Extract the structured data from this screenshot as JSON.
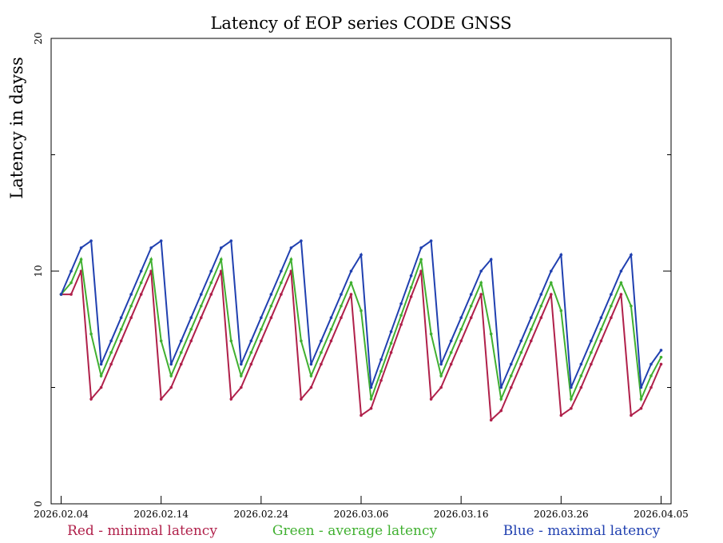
{
  "chart_data": {
    "type": "line",
    "title": "Latency of EOP  series CODE GNSS",
    "y_label": "Latency in dayss",
    "x": [
      "2026.02.04",
      "2026.02.05",
      "2026.02.06",
      "2026.02.07",
      "2026.02.08",
      "2026.02.09",
      "2026.02.10",
      "2026.02.11",
      "2026.02.12",
      "2026.02.13",
      "2026.02.14",
      "2026.02.15",
      "2026.02.16",
      "2026.02.17",
      "2026.02.18",
      "2026.02.19",
      "2026.02.20",
      "2026.02.21",
      "2026.02.22",
      "2026.02.23",
      "2026.02.24",
      "2026.02.25",
      "2026.02.26",
      "2026.02.27",
      "2026.02.28",
      "2026.03.01",
      "2026.03.02",
      "2026.03.03",
      "2026.03.04",
      "2026.03.05",
      "2026.03.06",
      "2026.03.07",
      "2026.03.08",
      "2026.03.09",
      "2026.03.10",
      "2026.03.11",
      "2026.03.12",
      "2026.03.13",
      "2026.03.14",
      "2026.03.15",
      "2026.03.16",
      "2026.03.17",
      "2026.03.18",
      "2026.03.19",
      "2026.03.20",
      "2026.03.21",
      "2026.03.22",
      "2026.03.23",
      "2026.03.24",
      "2026.03.25",
      "2026.03.26",
      "2026.03.27",
      "2026.03.28",
      "2026.03.29",
      "2026.03.30",
      "2026.03.31",
      "2026.04.01",
      "2026.04.02",
      "2026.04.03",
      "2026.04.04",
      "2026.04.05"
    ],
    "series": [
      {
        "name": "Red - minimal latency",
        "color": "#b0204a",
        "values": [
          9,
          9,
          10,
          4.5,
          5,
          6,
          7,
          8,
          9,
          10,
          4.5,
          5,
          6,
          7,
          8,
          9,
          10,
          4.5,
          5,
          6,
          7,
          8,
          9,
          10,
          4.5,
          5,
          6,
          7,
          8,
          9,
          3.8,
          4.1,
          5.3,
          6.5,
          7.7,
          8.9,
          10,
          4.5,
          5,
          6,
          7,
          8,
          9,
          3.6,
          4,
          5,
          6,
          7,
          8,
          9,
          3.8,
          4.1,
          5,
          6,
          7,
          8,
          9,
          3.8,
          4.1,
          5,
          6
        ]
      },
      {
        "name": "Green - average latency",
        "color": "#40b030",
        "values": [
          9,
          9.5,
          10.5,
          7.3,
          5.5,
          6.5,
          7.5,
          8.5,
          9.5,
          10.5,
          7,
          5.5,
          6.5,
          7.5,
          8.5,
          9.5,
          10.5,
          7,
          5.5,
          6.5,
          7.5,
          8.5,
          9.5,
          10.5,
          7,
          5.5,
          6.5,
          7.5,
          8.5,
          9.5,
          8.3,
          4.5,
          5.7,
          6.9,
          8.1,
          9.3,
          10.5,
          7.3,
          5.5,
          6.5,
          7.5,
          8.5,
          9.5,
          7.3,
          4.5,
          5.5,
          6.5,
          7.5,
          8.5,
          9.5,
          8.3,
          4.5,
          5.5,
          6.5,
          7.5,
          8.5,
          9.5,
          8.5,
          4.5,
          5.5,
          6.3
        ]
      },
      {
        "name": "Blue - maximal latency",
        "color": "#2040b0",
        "values": [
          9,
          10,
          11,
          11.3,
          6,
          7,
          8,
          9,
          10,
          11,
          11.3,
          6,
          7,
          8,
          9,
          10,
          11,
          11.3,
          6,
          7,
          8,
          9,
          10,
          11,
          11.3,
          6,
          7,
          8,
          9,
          10,
          10.7,
          5,
          6.2,
          7.4,
          8.6,
          9.8,
          11,
          11.3,
          6,
          7,
          8,
          9,
          10,
          10.5,
          5,
          6,
          7,
          8,
          9,
          10,
          10.7,
          5,
          6,
          7,
          8,
          9,
          10,
          10.7,
          5,
          6,
          6.6
        ]
      }
    ],
    "xlim": [
      "2026.02.03",
      "2026.04.06"
    ],
    "xticks": [
      "2026.02.04",
      "2026.02.14",
      "2026.02.24",
      "2026.03.06",
      "2026.03.16",
      "2026.03.26",
      "2026.04.05"
    ],
    "ylim": [
      0,
      20
    ],
    "yticks": [
      0,
      10,
      20
    ],
    "yminor_ticks": [
      5,
      15
    ]
  }
}
